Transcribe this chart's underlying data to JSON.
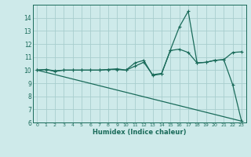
{
  "title": "",
  "xlabel": "Humidex (Indice chaleur)",
  "ylabel": "",
  "background_color": "#ceeaea",
  "grid_color": "#a8cece",
  "line_color": "#1a6b5a",
  "xlim": [
    -0.5,
    23.5
  ],
  "ylim": [
    6,
    15
  ],
  "xticks": [
    0,
    1,
    2,
    3,
    4,
    5,
    6,
    7,
    8,
    9,
    10,
    11,
    12,
    13,
    14,
    15,
    16,
    17,
    18,
    19,
    20,
    21,
    22,
    23
  ],
  "yticks": [
    6,
    7,
    8,
    9,
    10,
    11,
    12,
    13,
    14
  ],
  "series1_x": [
    0,
    1,
    2,
    3,
    4,
    5,
    6,
    7,
    8,
    9,
    10,
    11,
    12,
    13,
    14,
    15,
    16,
    17,
    18,
    19,
    20,
    21,
    22,
    23
  ],
  "series1_y": [
    10.0,
    10.05,
    9.9,
    10.0,
    10.0,
    10.0,
    10.0,
    10.0,
    10.05,
    10.1,
    10.0,
    10.55,
    10.75,
    9.6,
    9.7,
    11.55,
    13.3,
    14.5,
    10.55,
    10.6,
    10.75,
    10.8,
    8.9,
    6.1
  ],
  "series2_x": [
    0,
    1,
    2,
    3,
    4,
    5,
    6,
    7,
    8,
    9,
    10,
    11,
    12,
    13,
    14,
    15,
    16,
    17,
    18,
    19,
    20,
    21,
    22,
    23
  ],
  "series2_y": [
    10.0,
    10.05,
    9.95,
    10.0,
    10.0,
    10.0,
    10.0,
    10.0,
    10.05,
    10.05,
    10.0,
    10.3,
    10.6,
    9.65,
    9.75,
    11.5,
    11.6,
    11.35,
    10.55,
    10.6,
    10.75,
    10.8,
    11.35,
    11.4
  ],
  "series3_x": [
    0,
    23
  ],
  "series3_y": [
    10.0,
    6.1
  ],
  "marker_size": 2.5,
  "line_width": 0.9
}
